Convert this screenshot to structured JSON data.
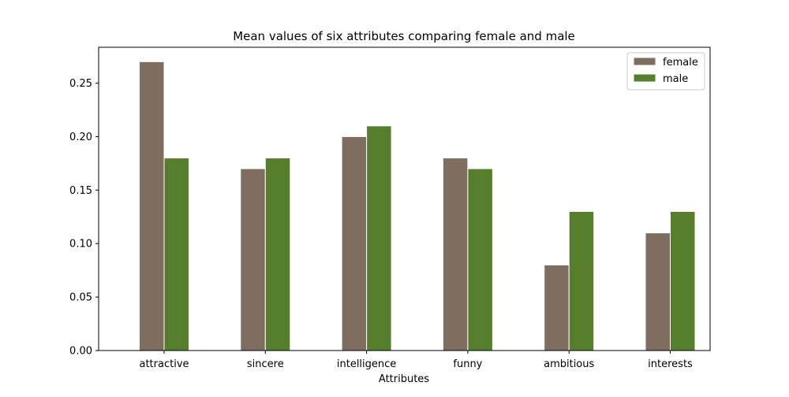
{
  "chart_data": {
    "type": "bar",
    "title": "Mean values of six attributes comparing female and male",
    "xlabel": "Attributes",
    "ylabel": "",
    "categories": [
      "attractive",
      "sincere",
      "intelligence",
      "funny",
      "ambitious",
      "interests"
    ],
    "series": [
      {
        "name": "female",
        "values": [
          0.27,
          0.17,
          0.2,
          0.18,
          0.08,
          0.11
        ],
        "color": "#7f6d5f"
      },
      {
        "name": "male",
        "values": [
          0.18,
          0.18,
          0.21,
          0.17,
          0.13,
          0.13
        ],
        "color": "#557f2d"
      }
    ],
    "ylim": [
      0,
      0.2835
    ],
    "yticks": [
      0.0,
      0.05,
      0.1,
      0.15,
      0.2,
      0.25
    ],
    "ytick_labels": [
      "0.00",
      "0.05",
      "0.10",
      "0.15",
      "0.20",
      "0.25"
    ],
    "grid": false,
    "legend_position": "top-right",
    "bar_edge_color": "#ffffff"
  }
}
